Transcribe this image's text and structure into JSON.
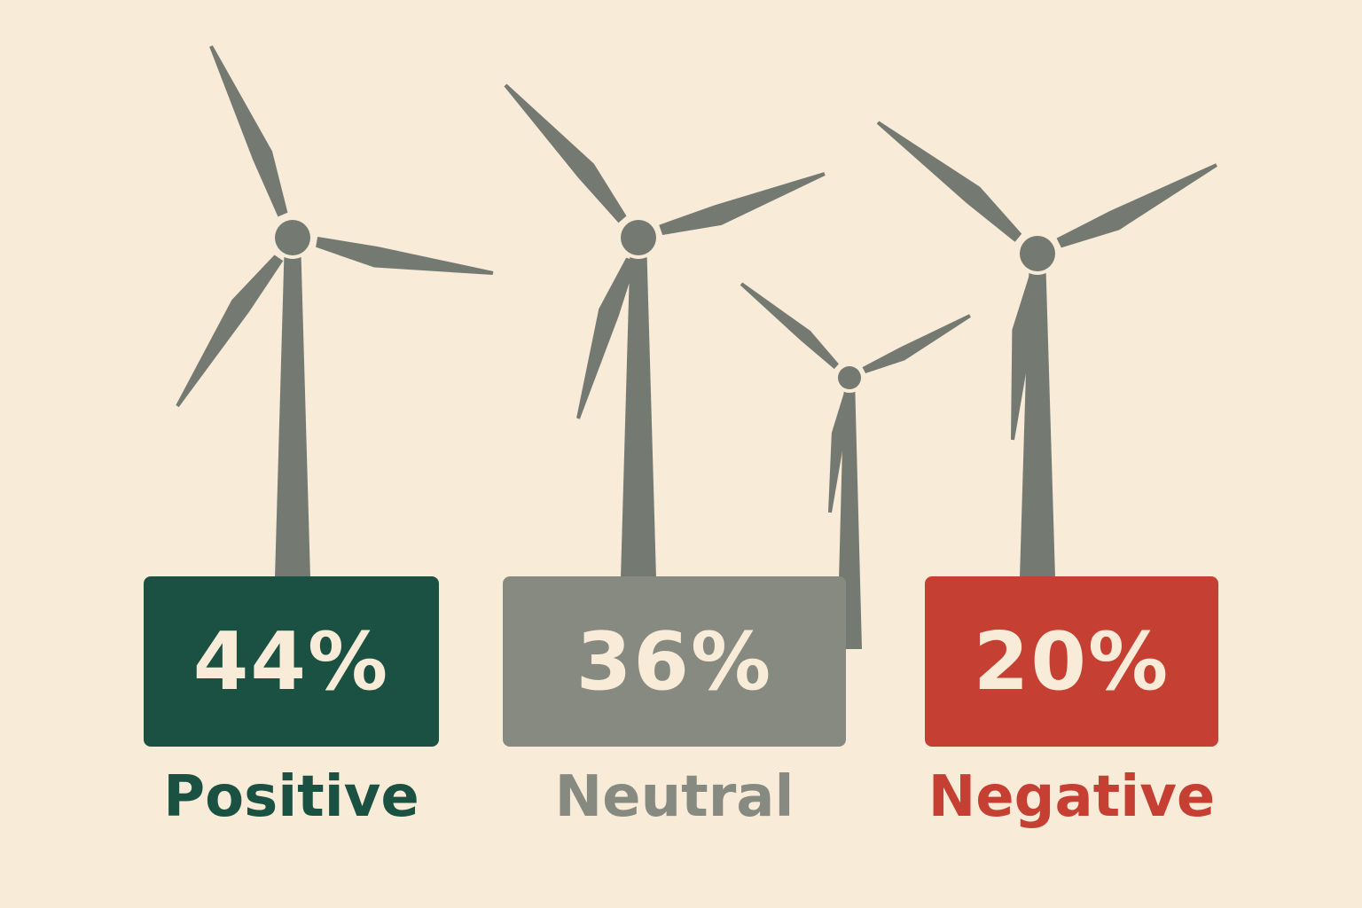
{
  "chart_data": {
    "type": "table",
    "categories": [
      "Positive",
      "Neutral",
      "Negative"
    ],
    "values": [
      44,
      36,
      20
    ],
    "value_labels": [
      "44%",
      "36%",
      "20%"
    ],
    "colors": [
      "#1B5142",
      "#878A80",
      "#C53F32"
    ],
    "icon": "wind-turbine-icon"
  }
}
